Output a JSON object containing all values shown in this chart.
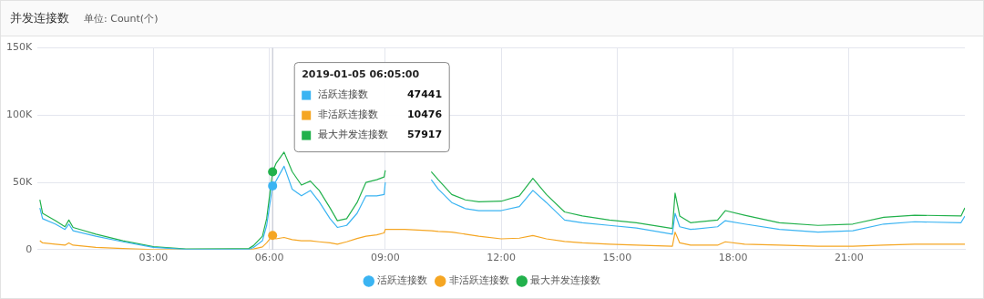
{
  "chart_data": {
    "type": "line",
    "title": "并发连接数",
    "subtitle": "单位: Count(个)",
    "x": [
      0.06,
      0.13,
      0.46,
      0.71,
      0.81,
      0.92,
      1.51,
      2.21,
      3.0,
      3.84,
      5.47,
      5.59,
      5.82,
      5.93,
      6.0833,
      6.17,
      6.38,
      6.59,
      6.83,
      7.06,
      7.29,
      7.57,
      7.76,
      8.0,
      8.27,
      8.5,
      8.78,
      8.97,
      9.0,
      9.5,
      10.19,
      10.37,
      10.72,
      11.07,
      11.42,
      12.0,
      12.47,
      12.82,
      13.17,
      13.64,
      14.1,
      14.8,
      15.5,
      16.43,
      16.5,
      16.62,
      16.9,
      17.6,
      17.8,
      18.3,
      19.2,
      20.2,
      21.1,
      21.9,
      22.7,
      23.9,
      24.0
    ],
    "series": [
      {
        "name": "活跃连接数",
        "color": "#3bb4f2",
        "values": [
          31000,
          23000,
          19000,
          15000,
          19000,
          14000,
          10000,
          5800,
          1600,
          200,
          200,
          1600,
          6600,
          18000,
          47400,
          51000,
          62000,
          45000,
          40000,
          44000,
          35500,
          23000,
          16500,
          18000,
          27000,
          40000,
          40000,
          41000,
          50000,
          null,
          52000,
          45000,
          35000,
          30500,
          29000,
          29000,
          32000,
          44000,
          35000,
          22000,
          20000,
          18000,
          16000,
          11500,
          27000,
          17000,
          15000,
          17000,
          21500,
          19000,
          15000,
          13000,
          14000,
          19000,
          20700,
          20000,
          25000
        ]
      },
      {
        "name": "非活跃连接数",
        "color": "#f5a623",
        "values": [
          6600,
          5000,
          4000,
          3300,
          5000,
          3300,
          1600,
          800,
          0,
          0,
          0,
          500,
          2000,
          5000,
          10500,
          8000,
          9000,
          7400,
          6600,
          6600,
          5800,
          5000,
          4000,
          5800,
          8300,
          10000,
          11000,
          12400,
          15000,
          15000,
          14000,
          13500,
          13000,
          11500,
          10000,
          8000,
          8500,
          10500,
          8000,
          6000,
          5000,
          4000,
          3300,
          2500,
          13000,
          5000,
          3300,
          3300,
          5800,
          4000,
          3300,
          2500,
          2500,
          3300,
          4000,
          4000,
          4000
        ]
      },
      {
        "name": "最大并发连接数",
        "color": "#22b14c",
        "values": [
          37000,
          27000,
          21500,
          17000,
          22000,
          16500,
          11500,
          6600,
          2200,
          500,
          800,
          3000,
          10000,
          23000,
          57900,
          64000,
          72500,
          58000,
          48000,
          51000,
          44000,
          31000,
          21500,
          23000,
          35000,
          50000,
          52000,
          54000,
          59000,
          null,
          58000,
          52000,
          41000,
          37000,
          35500,
          36000,
          40000,
          53000,
          41000,
          28000,
          25000,
          22000,
          20000,
          15700,
          42000,
          25000,
          20000,
          22000,
          29000,
          25600,
          20000,
          18000,
          19000,
          24000,
          25600,
          25000,
          31000
        ]
      }
    ],
    "xlim": [
      0,
      24
    ],
    "xticks": [
      {
        "value": 3,
        "label": "03:00"
      },
      {
        "value": 6,
        "label": "06:00"
      },
      {
        "value": 9,
        "label": "09:00"
      },
      {
        "value": 12,
        "label": "12:00"
      },
      {
        "value": 15,
        "label": "15:00"
      },
      {
        "value": 18,
        "label": "18:00"
      },
      {
        "value": 21,
        "label": "21:00"
      }
    ],
    "ylim": [
      0,
      150000
    ],
    "yticks": [
      0,
      {
        "value": 50000,
        "label": "50K"
      },
      {
        "value": 100000,
        "label": "100K"
      },
      {
        "value": 150000,
        "label": "150K"
      }
    ],
    "grid": true,
    "legend": "bottom",
    "marker": "none",
    "line_style": "solid",
    "ref_lines": [
      {
        "axis": "x",
        "value": 6.0833,
        "color": "#b8bcc8"
      }
    ],
    "annotations": [
      "2019-01-05 06:05:00",
      "47441",
      "10476",
      "57917"
    ]
  }
}
